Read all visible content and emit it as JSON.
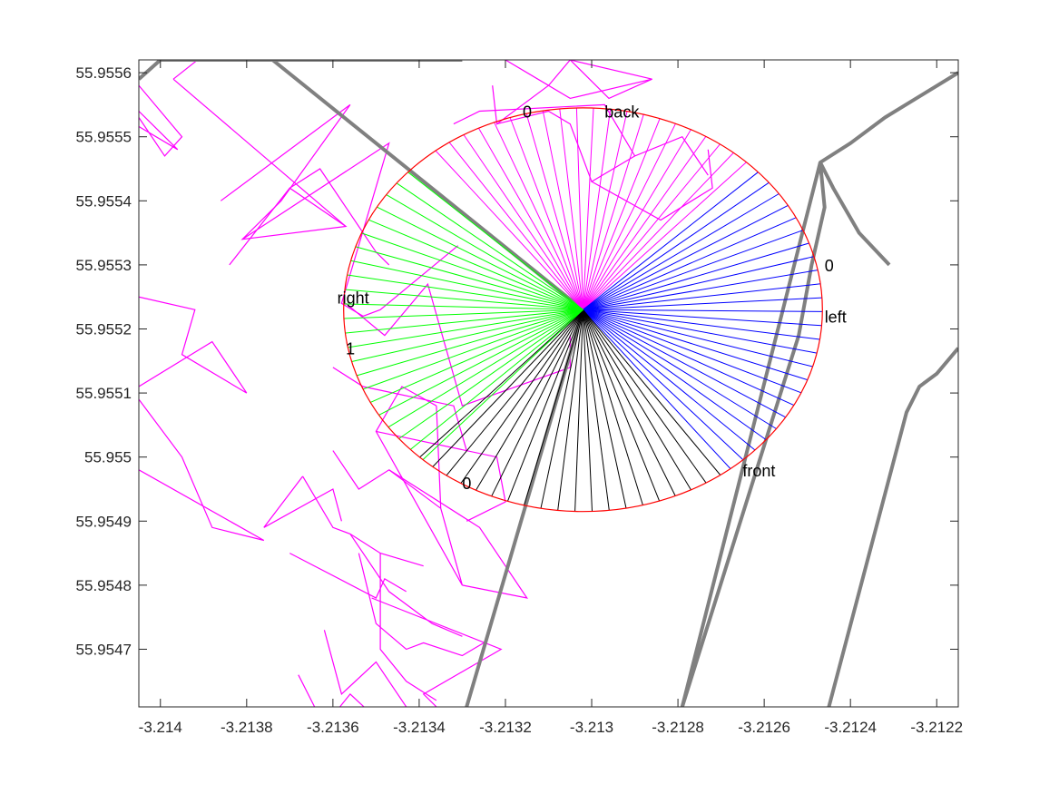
{
  "chart_data": {
    "type": "line",
    "title": "",
    "xlabel": "",
    "ylabel": "",
    "xlim": [
      -3.21405,
      -3.21215
    ],
    "ylim": [
      55.95461,
      55.95562
    ],
    "grid": false,
    "xticks": [
      -3.214,
      -3.2138,
      -3.2136,
      -3.2134,
      -3.2132,
      -3.213,
      -3.2128,
      -3.2126,
      -3.2124,
      -3.2122
    ],
    "xtick_labels": [
      "-3.214",
      "-3.2138",
      "-3.2136",
      "-3.2134",
      "-3.2132",
      "-3.213",
      "-3.2128",
      "-3.2126",
      "-3.2124",
      "-3.2122"
    ],
    "yticks": [
      55.9547,
      55.9548,
      55.9549,
      55.955,
      55.9551,
      55.9552,
      55.9553,
      55.9554,
      55.9555,
      55.9556
    ],
    "ytick_labels": [
      "55.9547",
      "55.9548",
      "55.9549",
      "55.955",
      "55.9551",
      "55.9552",
      "55.9553",
      "55.9554",
      "55.9555",
      "55.9556"
    ],
    "center": {
      "x": -3.21302,
      "y": 55.95523
    },
    "radius": {
      "x": 0.000555,
      "y": 0.000315
    },
    "circle_color": "#ff0000",
    "sector_rays": [
      {
        "name": "back",
        "color": "#ff00ff",
        "from_deg": 47,
        "to_deg": 128,
        "count": 21
      },
      {
        "name": "left",
        "color": "#0000ff",
        "from_deg": -52,
        "to_deg": 43,
        "count": 25
      },
      {
        "name": "front",
        "color": "#000000",
        "from_deg": -133,
        "to_deg": -55,
        "count": 20
      },
      {
        "name": "right",
        "color": "#00ff00",
        "from_deg": 137,
        "to_deg": 228,
        "count": 23
      }
    ],
    "annotations": [
      {
        "text": "back",
        "x": -3.21297,
        "y": 55.95553
      },
      {
        "text": "0",
        "x": -3.21316,
        "y": 55.95553
      },
      {
        "text": "0",
        "x": -3.21246,
        "y": 55.95529
      },
      {
        "text": "left",
        "x": -3.21246,
        "y": 55.95521
      },
      {
        "text": "front",
        "x": -3.21265,
        "y": 55.95497
      },
      {
        "text": "0",
        "x": -3.2133,
        "y": 55.95495
      },
      {
        "text": "right",
        "x": -3.21359,
        "y": 55.95524
      },
      {
        "text": "1",
        "x": -3.21357,
        "y": 55.95516
      }
    ],
    "roads": {
      "color": "#808080",
      "width": 4,
      "lines": [
        [
          [
            -3.21405,
            55.95559
          ],
          [
            -3.214,
            55.95562
          ],
          [
            -3.2133,
            55.95562
          ]
        ],
        [
          [
            -3.21374,
            55.95562
          ],
          [
            -3.21302,
            55.95523
          ]
        ],
        [
          [
            -3.21302,
            55.95523
          ],
          [
            -3.21329,
            55.95461
          ]
        ],
        [
          [
            -3.21279,
            55.95461
          ],
          [
            -3.21247,
            55.95546
          ],
          [
            -3.2124,
            55.95549
          ],
          [
            -3.21232,
            55.95553
          ],
          [
            -3.21215,
            55.9556
          ]
        ],
        [
          [
            -3.21247,
            55.95546
          ],
          [
            -3.21246,
            55.95539
          ],
          [
            -3.21249,
            55.9553
          ],
          [
            -3.21252,
            55.95519
          ],
          [
            -3.21279,
            55.95461
          ]
        ],
        [
          [
            -3.21247,
            55.95546
          ],
          [
            -3.21244,
            55.95542
          ],
          [
            -3.21238,
            55.95535
          ],
          [
            -3.21231,
            55.9553
          ]
        ],
        [
          [
            -3.21245,
            55.95461
          ],
          [
            -3.21227,
            55.95507
          ],
          [
            -3.21224,
            55.95511
          ],
          [
            -3.2122,
            55.95513
          ],
          [
            -3.21215,
            55.95517
          ]
        ]
      ]
    },
    "buildings": {
      "color": "#ff00ff",
      "polylines": [
        [
          [
            -3.21405,
            55.95554
          ],
          [
            -3.21396,
            55.95548
          ],
          [
            -3.21406,
            55.95552
          ]
        ],
        [
          [
            -3.21405,
            55.95553
          ],
          [
            -3.21399,
            55.95547
          ],
          [
            -3.21395,
            55.9555
          ],
          [
            -3.21405,
            55.95558
          ]
        ],
        [
          [
            -3.21397,
            55.95559
          ],
          [
            -3.21382,
            55.95567
          ]
        ],
        [
          [
            -3.21397,
            55.95559
          ],
          [
            -3.21357,
            55.95536
          ],
          [
            -3.21381,
            55.95534
          ],
          [
            -3.21372,
            55.9554
          ],
          [
            -3.21356,
            55.95555
          ],
          [
            -3.21386,
            55.9554
          ]
        ],
        [
          [
            -3.21381,
            55.95534
          ],
          [
            -3.21347,
            55.95549
          ],
          [
            -3.21358,
            55.95524
          ],
          [
            -3.21353,
            55.95522
          ],
          [
            -3.21349,
            55.95523
          ],
          [
            -3.21331,
            55.95533
          ]
        ],
        [
          [
            -3.21384,
            55.9553
          ],
          [
            -3.2137,
            55.95542
          ],
          [
            -3.21357,
            55.95536
          ]
        ],
        [
          [
            -3.2137,
            55.95542
          ],
          [
            -3.21363,
            55.95545
          ],
          [
            -3.2135,
            55.95532
          ],
          [
            -3.21347,
            55.9553
          ]
        ],
        [
          [
            -3.21405,
            55.95525
          ],
          [
            -3.21392,
            55.95523
          ],
          [
            -3.21395,
            55.95516
          ],
          [
            -3.2138,
            55.9551
          ],
          [
            -3.21388,
            55.95518
          ],
          [
            -3.21405,
            55.95511
          ]
        ],
        [
          [
            -3.21405,
            55.95498
          ],
          [
            -3.21376,
            55.95487
          ],
          [
            -3.21388,
            55.95489
          ],
          [
            -3.21395,
            55.955
          ],
          [
            -3.21405,
            55.95509
          ]
        ],
        [
          [
            -3.21357,
            55.95524
          ],
          [
            -3.21348,
            55.95519
          ],
          [
            -3.21338,
            55.95527
          ],
          [
            -3.2133,
            55.95508
          ],
          [
            -3.21305,
            55.95514
          ],
          [
            -3.21305,
            55.95519
          ]
        ],
        [
          [
            -3.21336,
            55.95508
          ],
          [
            -3.21335,
            55.95492
          ],
          [
            -3.2133,
            55.9548
          ],
          [
            -3.2135,
            55.95504
          ],
          [
            -3.21344,
            55.95511
          ],
          [
            -3.21336,
            55.95508
          ]
        ],
        [
          [
            -3.2136,
            55.95514
          ],
          [
            -3.21353,
            55.95511
          ],
          [
            -3.21332,
            55.95508
          ],
          [
            -3.21329,
            55.95501
          ]
        ],
        [
          [
            -3.2135,
            55.95504
          ],
          [
            -3.21322,
            55.955
          ],
          [
            -3.2132,
            55.95493
          ],
          [
            -3.21329,
            55.9549
          ]
        ],
        [
          [
            -3.2136,
            55.95501
          ],
          [
            -3.21354,
            55.95495
          ],
          [
            -3.21347,
            55.95498
          ],
          [
            -3.21335,
            55.95492
          ]
        ],
        [
          [
            -3.21347,
            55.95498
          ],
          [
            -3.21326,
            55.95489
          ],
          [
            -3.21315,
            55.95478
          ],
          [
            -3.2133,
            55.9548
          ]
        ],
        [
          [
            -3.21367,
            55.95497
          ],
          [
            -3.2136,
            55.95489
          ],
          [
            -3.21356,
            55.95488
          ],
          [
            -3.21349,
            55.95485
          ],
          [
            -3.21339,
            55.95483
          ]
        ],
        [
          [
            -3.21354,
            55.95485
          ],
          [
            -3.2135,
            55.95474
          ],
          [
            -3.21343,
            55.9547
          ],
          [
            -3.21339,
            55.95471
          ],
          [
            -3.2133,
            55.95469
          ],
          [
            -3.21325,
            55.95471
          ]
        ],
        [
          [
            -3.21362,
            55.95473
          ],
          [
            -3.21358,
            55.95463
          ],
          [
            -3.2135,
            55.95468
          ],
          [
            -3.21343,
            55.95461
          ]
        ],
        [
          [
            -3.21368,
            55.95466
          ],
          [
            -3.21362,
            55.95458
          ],
          [
            -3.21356,
            55.95463
          ],
          [
            -3.21348,
            55.95458
          ]
        ],
        [
          [
            -3.21351,
            55.95478
          ],
          [
            -3.21321,
            55.9547
          ],
          [
            -3.21339,
            55.95463
          ],
          [
            -3.21333,
            55.95459
          ]
        ],
        [
          [
            -3.2137,
            55.95485
          ],
          [
            -3.2135,
            55.95478
          ],
          [
            -3.21348,
            55.95481
          ],
          [
            -3.21343,
            55.95479
          ]
        ],
        [
          [
            -3.21349,
            55.95485
          ],
          [
            -3.21349,
            55.9547
          ],
          [
            -3.21343,
            55.95465
          ],
          [
            -3.21336,
            55.95462
          ]
        ],
        [
          [
            -3.21367,
            55.95497
          ],
          [
            -3.21376,
            55.95489
          ],
          [
            -3.2136,
            55.95495
          ],
          [
            -3.21358,
            55.9549
          ]
        ],
        [
          [
            -3.21356,
            55.95488
          ],
          [
            -3.21347,
            55.95479
          ],
          [
            -3.21337,
            55.95474
          ],
          [
            -3.2133,
            55.95472
          ]
        ],
        [
          [
            -3.21323,
            55.95558
          ],
          [
            -3.21322,
            55.95552
          ],
          [
            -3.2131,
            55.95558
          ],
          [
            -3.21305,
            55.95556
          ],
          [
            -3.21286,
            55.95559
          ],
          [
            -3.21305,
            55.95562
          ]
        ],
        [
          [
            -3.2132,
            55.95562
          ],
          [
            -3.2131,
            55.95558
          ],
          [
            -3.21305,
            55.95562
          ],
          [
            -3.21296,
            55.95556
          ],
          [
            -3.21286,
            55.95559
          ]
        ],
        [
          [
            -3.21332,
            55.95552
          ],
          [
            -3.21326,
            55.95554
          ],
          [
            -3.21297,
            55.95555
          ],
          [
            -3.2129,
            55.95547
          ],
          [
            -3.21279,
            55.9555
          ],
          [
            -3.21273,
            55.95544
          ]
        ],
        [
          [
            -3.2129,
            55.95547
          ],
          [
            -3.213,
            55.95543
          ],
          [
            -3.21284,
            55.95537
          ],
          [
            -3.21272,
            55.95542
          ],
          [
            -3.21273,
            55.95548
          ]
        ],
        [
          [
            -3.21322,
            55.95552
          ],
          [
            -3.2131,
            55.95554
          ],
          [
            -3.21305,
            55.95552
          ],
          [
            -3.213,
            55.95543
          ]
        ]
      ]
    }
  }
}
